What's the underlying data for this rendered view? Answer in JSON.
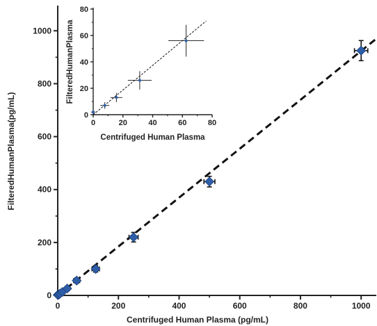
{
  "chart_data": [
    {
      "type": "scatter",
      "role": "main",
      "xlabel": "Centrifuged Human Plasma (pg/mL)",
      "ylabel": "FilteredHumanPlasma(pg/mL)",
      "xlim": [
        0,
        1050
      ],
      "ylim": [
        0,
        1090
      ],
      "xticks": [
        0,
        200,
        400,
        600,
        800,
        1000
      ],
      "yticks": [
        0,
        200,
        400,
        600,
        800,
        1000
      ],
      "points": [
        {
          "x": 0,
          "y": 2,
          "xerr": 4,
          "yerr": 3
        },
        {
          "x": 3.9,
          "y": 3,
          "xerr": 4,
          "yerr": 4
        },
        {
          "x": 7.8,
          "y": 7,
          "xerr": 5,
          "yerr": 5
        },
        {
          "x": 15.6,
          "y": 13,
          "xerr": 6,
          "yerr": 5
        },
        {
          "x": 31.3,
          "y": 26,
          "xerr": 8,
          "yerr": 7
        },
        {
          "x": 62.5,
          "y": 56,
          "xerr": 10,
          "yerr": 10
        },
        {
          "x": 125,
          "y": 100,
          "xerr": 12,
          "yerr": 12
        },
        {
          "x": 250,
          "y": 220,
          "xerr": 15,
          "yerr": 18
        },
        {
          "x": 500,
          "y": 430,
          "xerr": 18,
          "yerr": 20
        },
        {
          "x": 1000,
          "y": 925,
          "xerr": 22,
          "yerr": 38
        }
      ],
      "fit_line": {
        "x": [
          0,
          1050
        ],
        "y": [
          0,
          970
        ]
      },
      "marker_color": "#2f5ea8",
      "grid": false
    },
    {
      "type": "scatter",
      "role": "inset",
      "xlabel": "Centrifuged Human Plasma",
      "ylabel": "FilteredHumanPlasma",
      "xlim": [
        0,
        80
      ],
      "ylim": [
        0,
        80
      ],
      "xticks": [
        0,
        20,
        40,
        60,
        80
      ],
      "yticks": [
        0,
        20,
        40,
        60,
        80
      ],
      "points": [
        {
          "x": 0,
          "y": 2,
          "xerr": 1.5,
          "yerr": 1
        },
        {
          "x": 7.8,
          "y": 7,
          "xerr": 3,
          "yerr": 2.5
        },
        {
          "x": 15.6,
          "y": 13,
          "xerr": 4,
          "yerr": 3.5
        },
        {
          "x": 31.3,
          "y": 26,
          "xerr": 8,
          "yerr": 7
        },
        {
          "x": 62.5,
          "y": 56,
          "xerr": 12,
          "yerr": 12
        }
      ],
      "fit_line": {
        "x": [
          0,
          76
        ],
        "y": [
          0,
          71
        ]
      },
      "marker_color": "#2f5ea8",
      "grid": false
    }
  ]
}
